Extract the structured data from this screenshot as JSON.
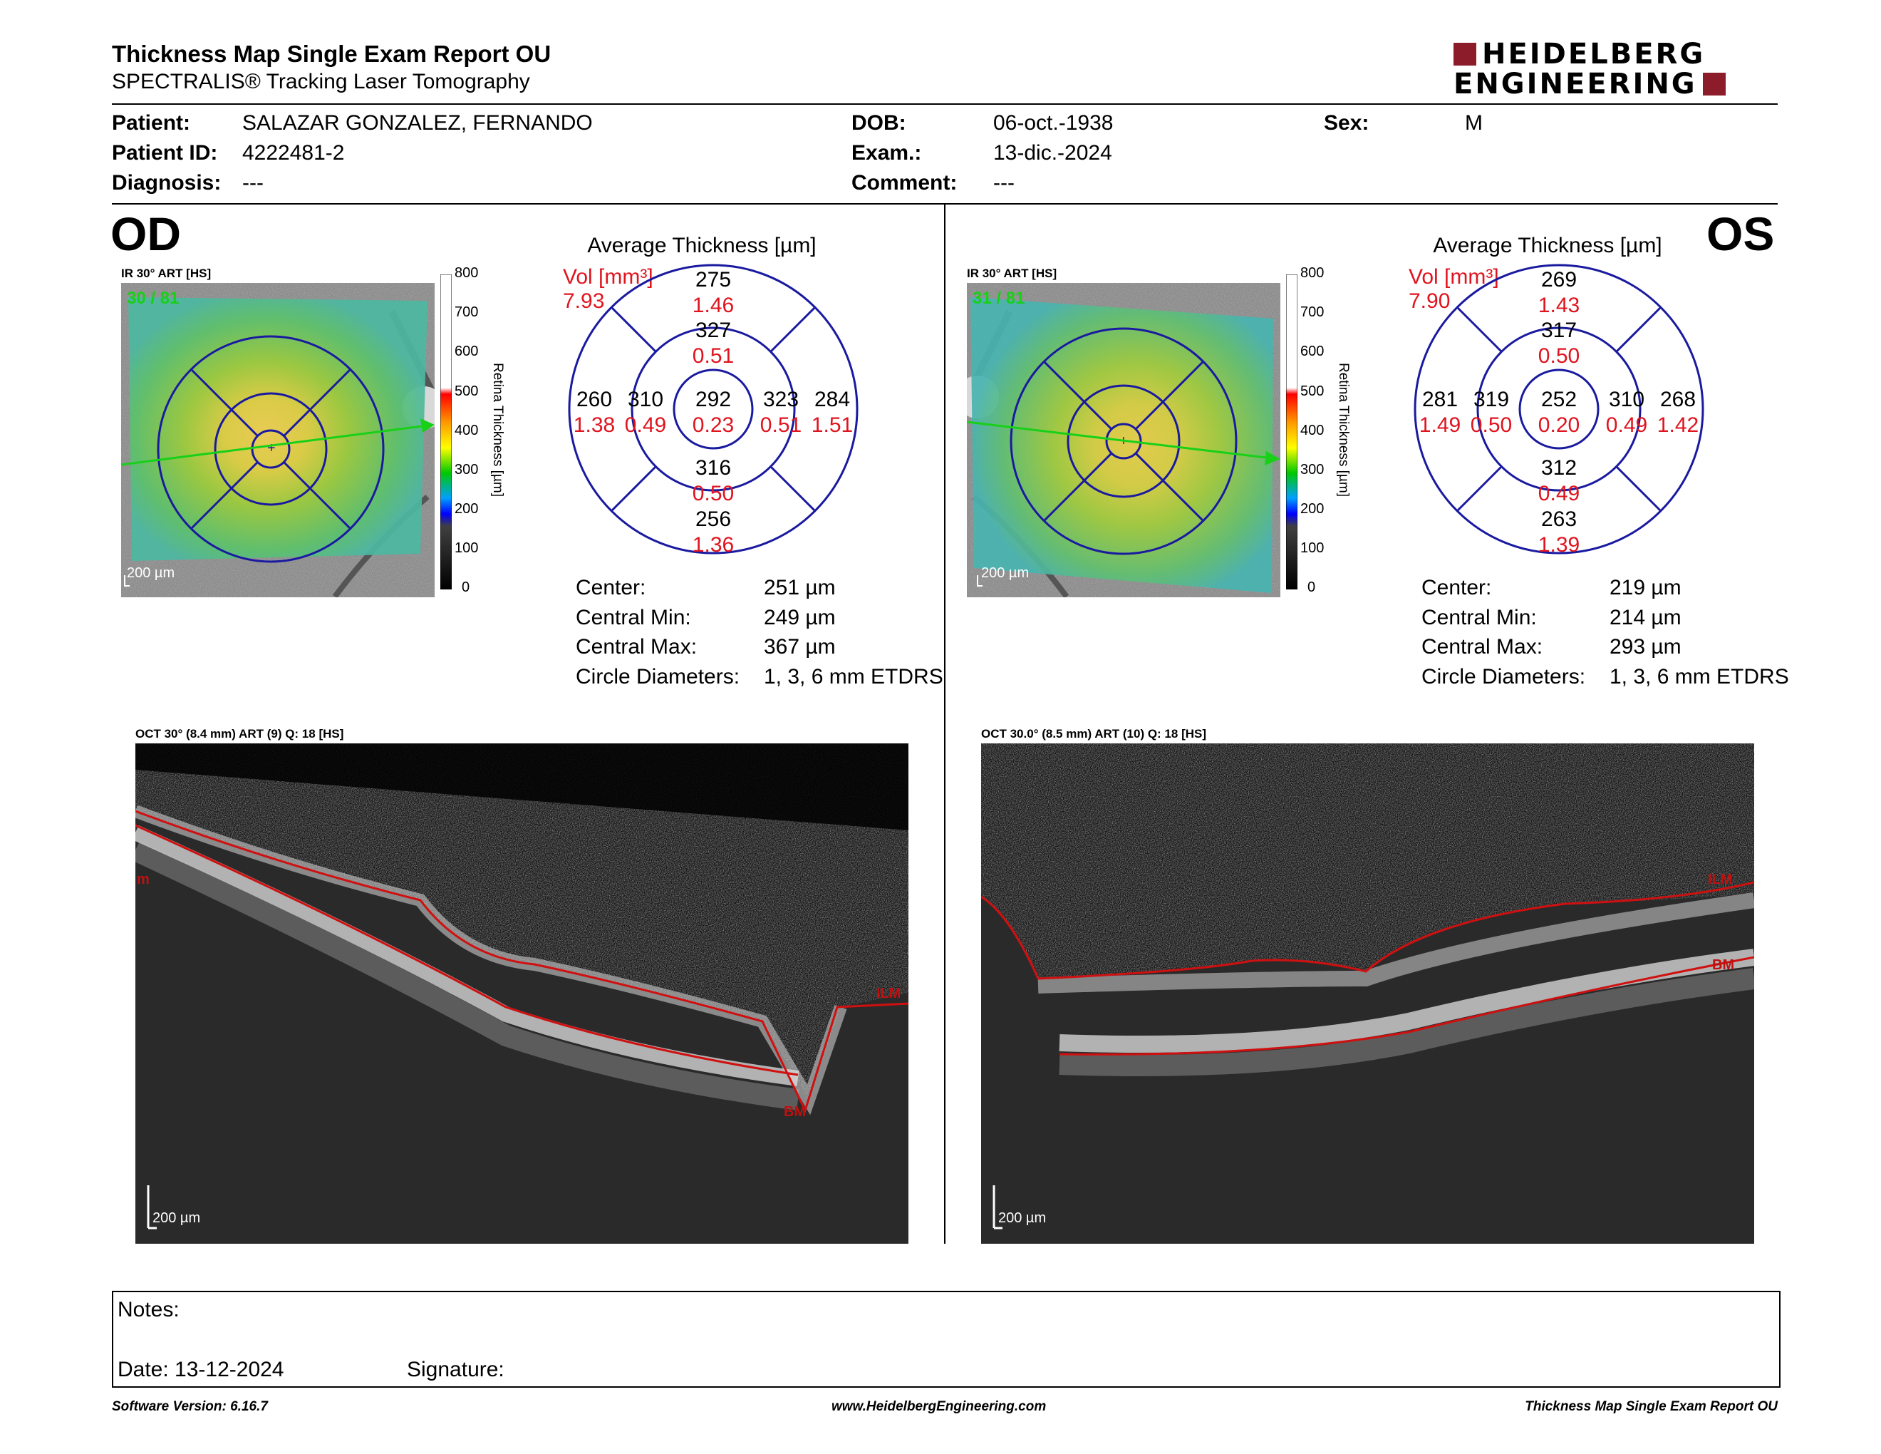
{
  "header": {
    "title": "Thickness Map Single Exam Report OU",
    "subtitle": "SPECTRALIS® Tracking Laser Tomography",
    "logo_line1": "HEIDELBERG",
    "logo_line2": "ENGINEERING",
    "brand_color": "#8c1c2a"
  },
  "patient": {
    "patient_label": "Patient:",
    "patient_value": "SALAZAR GONZALEZ, FERNANDO",
    "id_label": "Patient ID:",
    "id_value": "4222481-2",
    "diagnosis_label": "Diagnosis:",
    "diagnosis_value": "---",
    "dob_label": "DOB:",
    "dob_value": "06-oct.-1938",
    "exam_label": "Exam.:",
    "exam_value": "13-dic.-2024",
    "comment_label": "Comment:",
    "comment_value": "---",
    "sex_label": "Sex:",
    "sex_value": "M"
  },
  "od": {
    "eye": "OD",
    "ir_label": "IR 30° ART [HS]",
    "art_count": "30 / 81",
    "scale": "200 µm",
    "colorbar_ticks": [
      "800",
      "700",
      "600",
      "500",
      "400",
      "300",
      "200",
      "100",
      "0"
    ],
    "colorbar_title": "Retina Thickness [µm]",
    "avg_title": "Average Thickness [µm]",
    "vol_label": "Vol [mm³]",
    "vol_value": "7.93",
    "grid": {
      "center_t": "292",
      "center_v": "0.23",
      "inner_sup_t": "327",
      "inner_sup_v": "0.51",
      "inner_inf_t": "316",
      "inner_inf_v": "0.50",
      "inner_left_t": "310",
      "inner_left_v": "0.49",
      "inner_right_t": "323",
      "inner_right_v": "0.51",
      "outer_sup_t": "275",
      "outer_sup_v": "1.46",
      "outer_inf_t": "256",
      "outer_inf_v": "1.36",
      "outer_left_t": "260",
      "outer_left_v": "1.38",
      "outer_right_t": "284",
      "outer_right_v": "1.51"
    },
    "stats": {
      "center_label": "Center:",
      "center_value": "251 µm",
      "min_label": "Central Min:",
      "min_value": "249 µm",
      "max_label": "Central Max:",
      "max_value": "367 µm",
      "diam_label": "Circle Diameters:",
      "diam_value": "1, 3, 6 mm ETDRS"
    },
    "oct_label": "OCT 30° (8.4 mm) ART (9) Q: 18 [HS]",
    "oct_scale": "200 µm",
    "ilm_label": "ILM",
    "bm_label": "BM",
    "m_label": "m"
  },
  "os": {
    "eye": "OS",
    "ir_label": "IR 30° ART [HS]",
    "art_count": "31 / 81",
    "scale": "200 µm",
    "colorbar_ticks": [
      "800",
      "700",
      "600",
      "500",
      "400",
      "300",
      "200",
      "100",
      "0"
    ],
    "colorbar_title": "Retina Thickness [µm]",
    "avg_title": "Average Thickness [µm]",
    "vol_label": "Vol [mm³]",
    "vol_value": "7.90",
    "grid": {
      "center_t": "252",
      "center_v": "0.20",
      "inner_sup_t": "317",
      "inner_sup_v": "0.50",
      "inner_inf_t": "312",
      "inner_inf_v": "0.49",
      "inner_left_t": "319",
      "inner_left_v": "0.50",
      "inner_right_t": "310",
      "inner_right_v": "0.49",
      "outer_sup_t": "269",
      "outer_sup_v": "1.43",
      "outer_inf_t": "263",
      "outer_inf_v": "1.39",
      "outer_left_t": "281",
      "outer_left_v": "1.49",
      "outer_right_t": "268",
      "outer_right_v": "1.42"
    },
    "stats": {
      "center_label": "Center:",
      "center_value": "219 µm",
      "min_label": "Central Min:",
      "min_value": "214 µm",
      "max_label": "Central Max:",
      "max_value": "293 µm",
      "diam_label": "Circle Diameters:",
      "diam_value": "1, 3, 6 mm ETDRS"
    },
    "oct_label": "OCT 30.0° (8.5 mm) ART (10) Q: 18 [HS]",
    "oct_scale": "200 µm",
    "ilm_label": "ILM",
    "bm_label": "BM"
  },
  "notes": {
    "notes_label": "Notes:",
    "date_label": "Date: 13-12-2024",
    "signature_label": "Signature:"
  },
  "footer": {
    "software": "Software Version: 6.16.7",
    "website": "www.HeidelbergEngineering.com",
    "report_name": "Thickness Map Single Exam Report OU"
  },
  "colors": {
    "grid_blue": "#1a1aa0",
    "value_red": "#e0141e",
    "segmentation_red": "#d01010",
    "scan_arrow_green": "#18d018"
  }
}
